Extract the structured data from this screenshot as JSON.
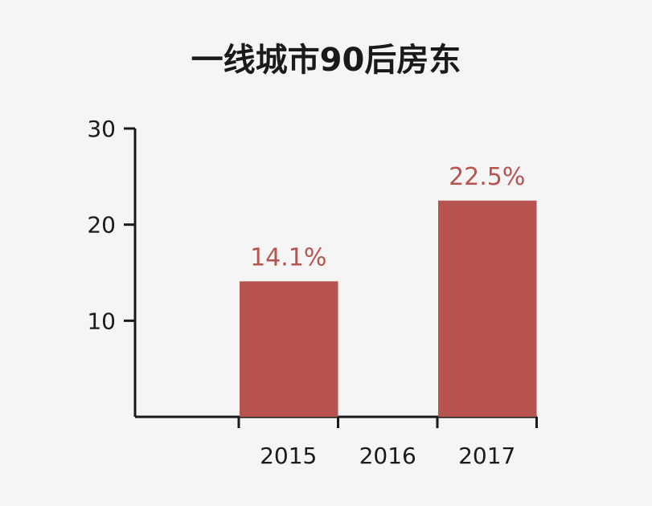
{
  "chart_data": {
    "type": "bar",
    "title": "一线城市90后房东",
    "xlabel": "",
    "ylabel": "",
    "categories": [
      "2015",
      "2016",
      "2017"
    ],
    "values": [
      14.1,
      null,
      22.5
    ],
    "data_labels": [
      "14.1%",
      "",
      "22.5%"
    ],
    "yticks": [
      10,
      20,
      30
    ],
    "ylim": [
      0,
      30
    ],
    "grid": false,
    "legend": "none",
    "bar_color": "#b85450",
    "axis_color": "#1a1a1a"
  }
}
